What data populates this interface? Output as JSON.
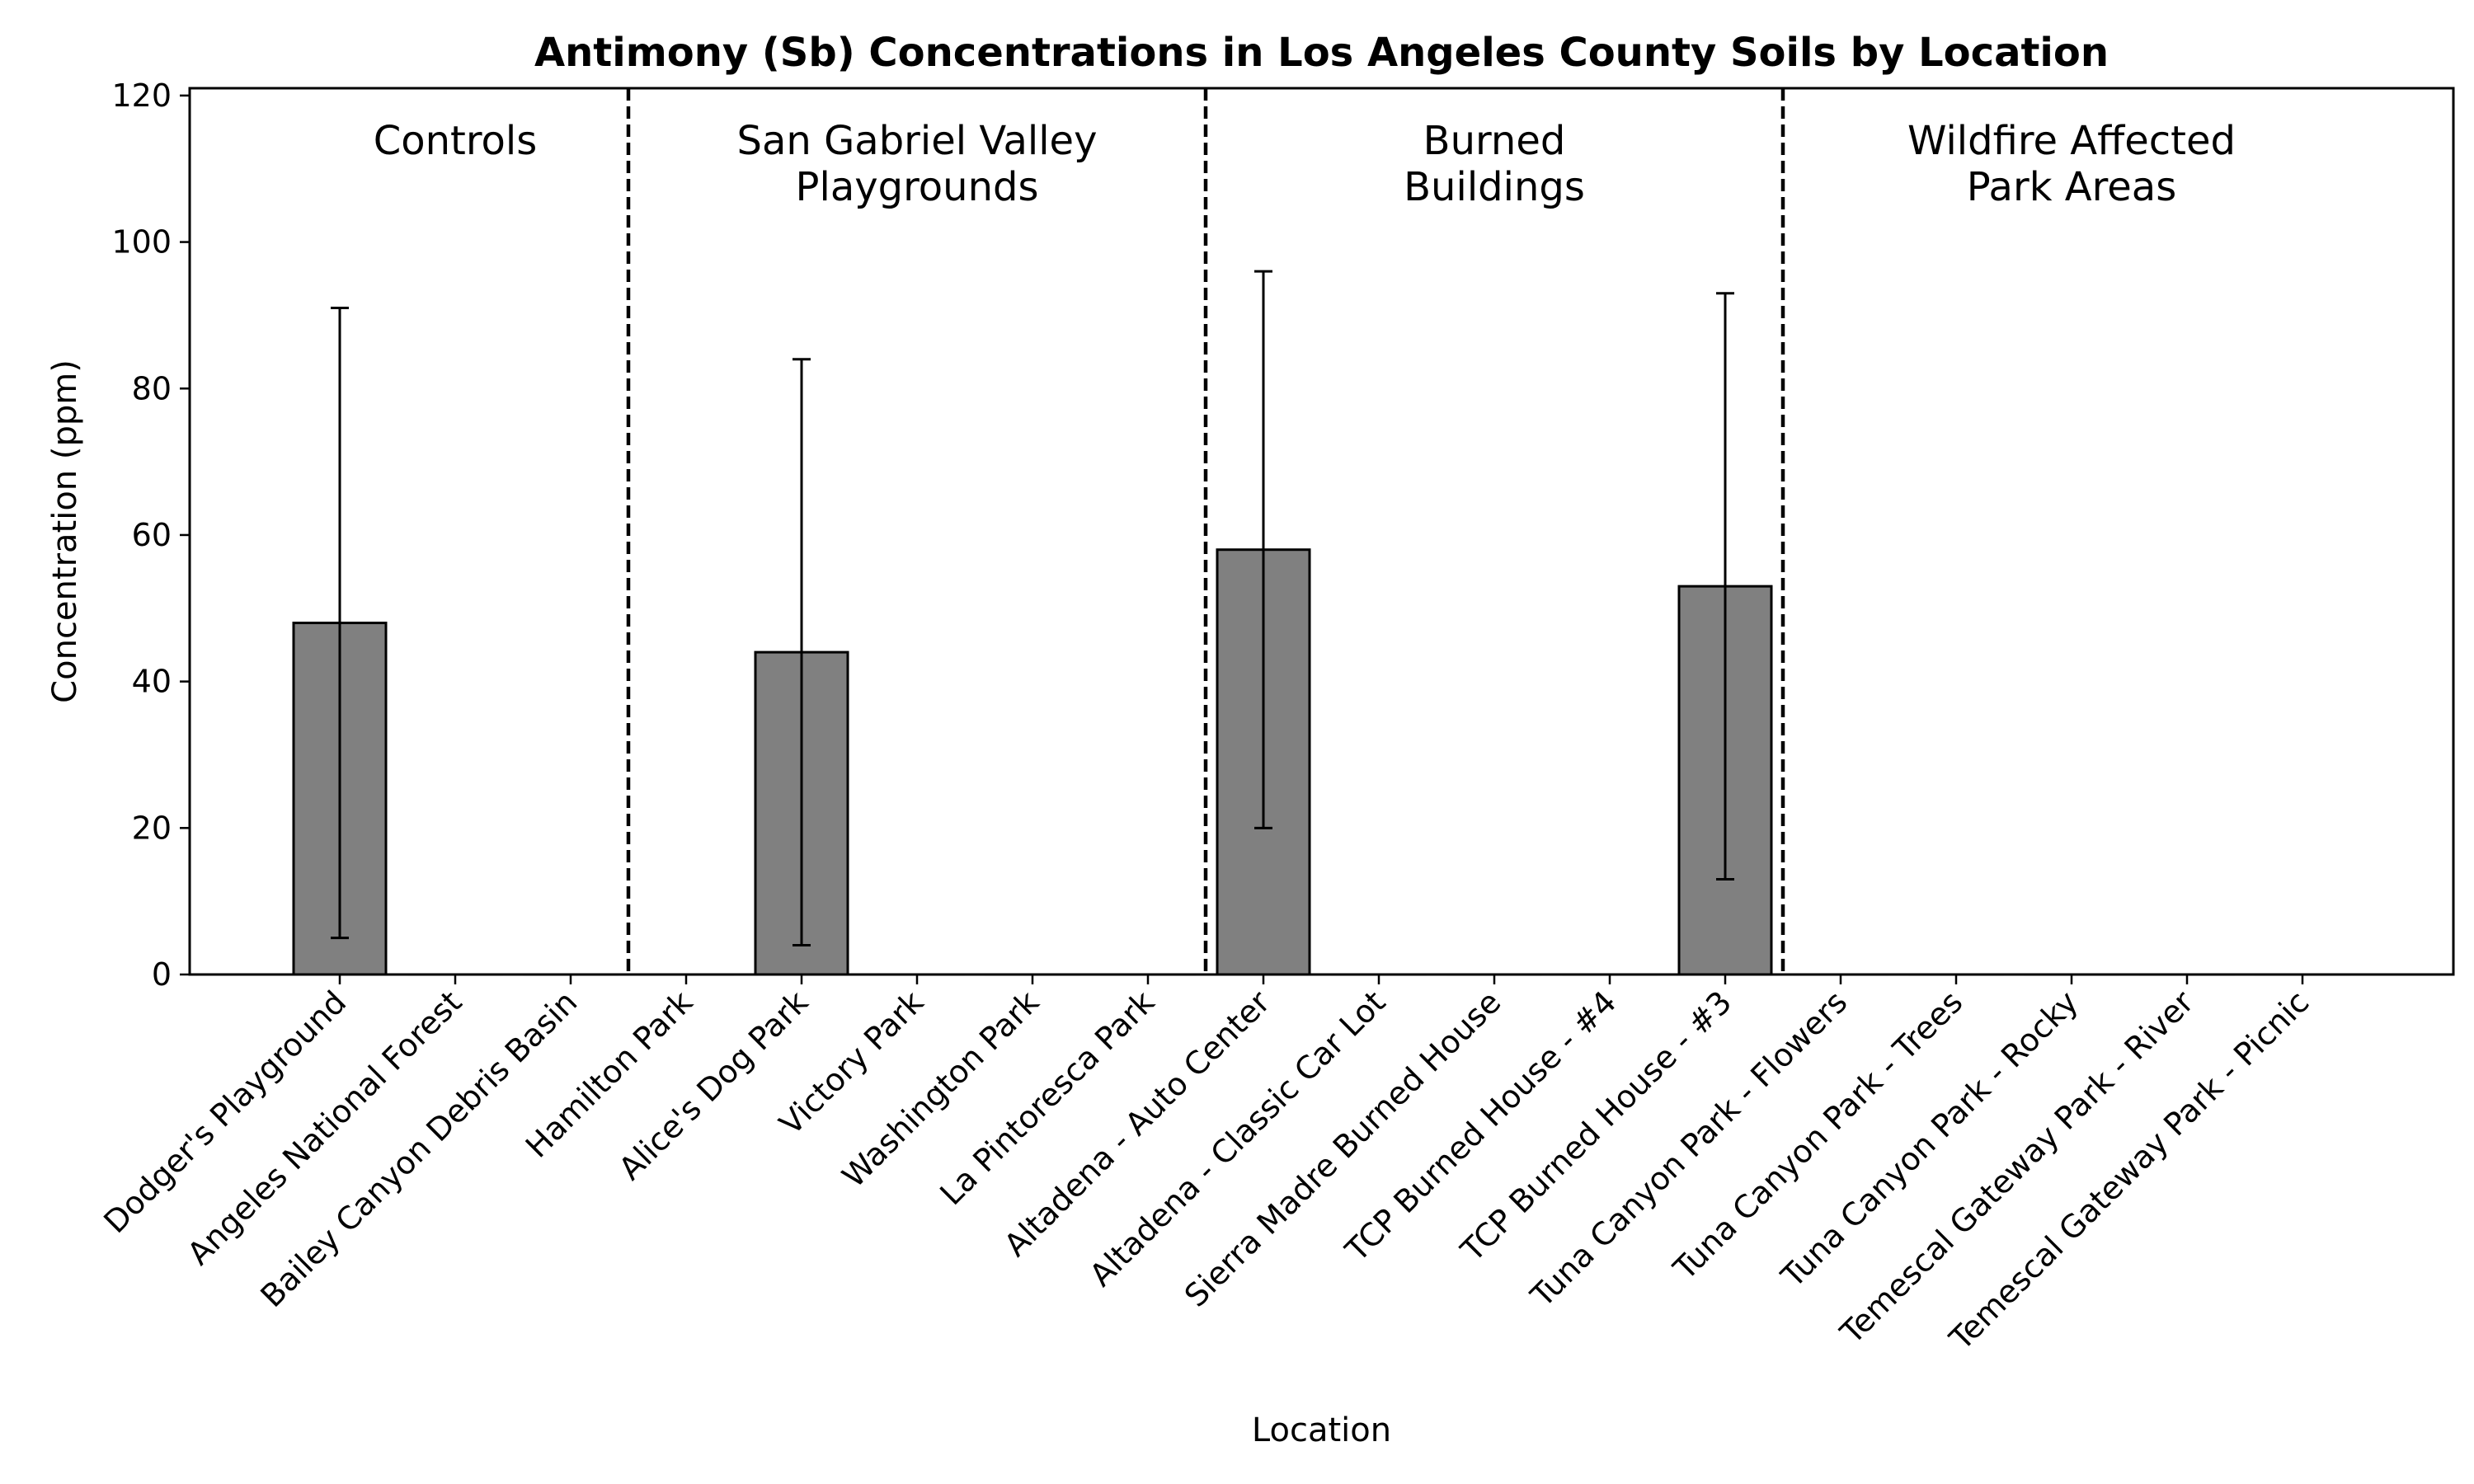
{
  "chart_data": {
    "type": "bar",
    "title": "Antimony (Sb) Concentrations in Los Angeles County Soils by Location",
    "xlabel": "Location",
    "ylabel": "Concentration (ppm)",
    "ylim": [
      0,
      121
    ],
    "yticks": [
      0,
      20,
      40,
      60,
      80,
      100,
      120
    ],
    "grid": false,
    "bar_color": "#808080",
    "edge_color": "#000000",
    "categories": [
      "Dodger's Playground",
      "Angeles National Forest",
      "Bailey Canyon Debris Basin",
      "Hamilton Park",
      "Alice's Dog Park",
      "Victory Park",
      "Washington Park",
      "La Pintoresca Park",
      "Altadena - Auto Center",
      "Altadena - Classic Car Lot",
      "Sierra Madre Burned House",
      "TCP Burned House - #4",
      "TCP Burned House - #3",
      "Tuna Canyon Park - Flowers",
      "Tuna Canyon Park - Trees",
      "Tuna Canyon Park - Rocky",
      "Temescal Gateway Park - River",
      "Temescal Gateway Park - Picnic"
    ],
    "values": [
      48,
      0,
      0,
      0,
      44,
      0,
      0,
      0,
      58,
      0,
      0,
      0,
      53,
      0,
      0,
      0,
      0,
      0
    ],
    "error_low": [
      5,
      null,
      null,
      null,
      4,
      null,
      null,
      null,
      20,
      null,
      null,
      null,
      13,
      null,
      null,
      null,
      null,
      null
    ],
    "error_high": [
      91,
      null,
      null,
      null,
      84,
      null,
      null,
      null,
      96,
      null,
      null,
      null,
      93,
      null,
      null,
      null,
      null,
      null
    ],
    "groups": [
      {
        "lines": [
          "Controls"
        ],
        "start": 0,
        "end": 2
      },
      {
        "lines": [
          "San Gabriel Valley",
          "Playgrounds"
        ],
        "start": 3,
        "end": 7
      },
      {
        "lines": [
          "Burned",
          "Buildings"
        ],
        "start": 8,
        "end": 12
      },
      {
        "lines": [
          "Wildfire Affected",
          "Park Areas"
        ],
        "start": 13,
        "end": 17
      }
    ]
  }
}
